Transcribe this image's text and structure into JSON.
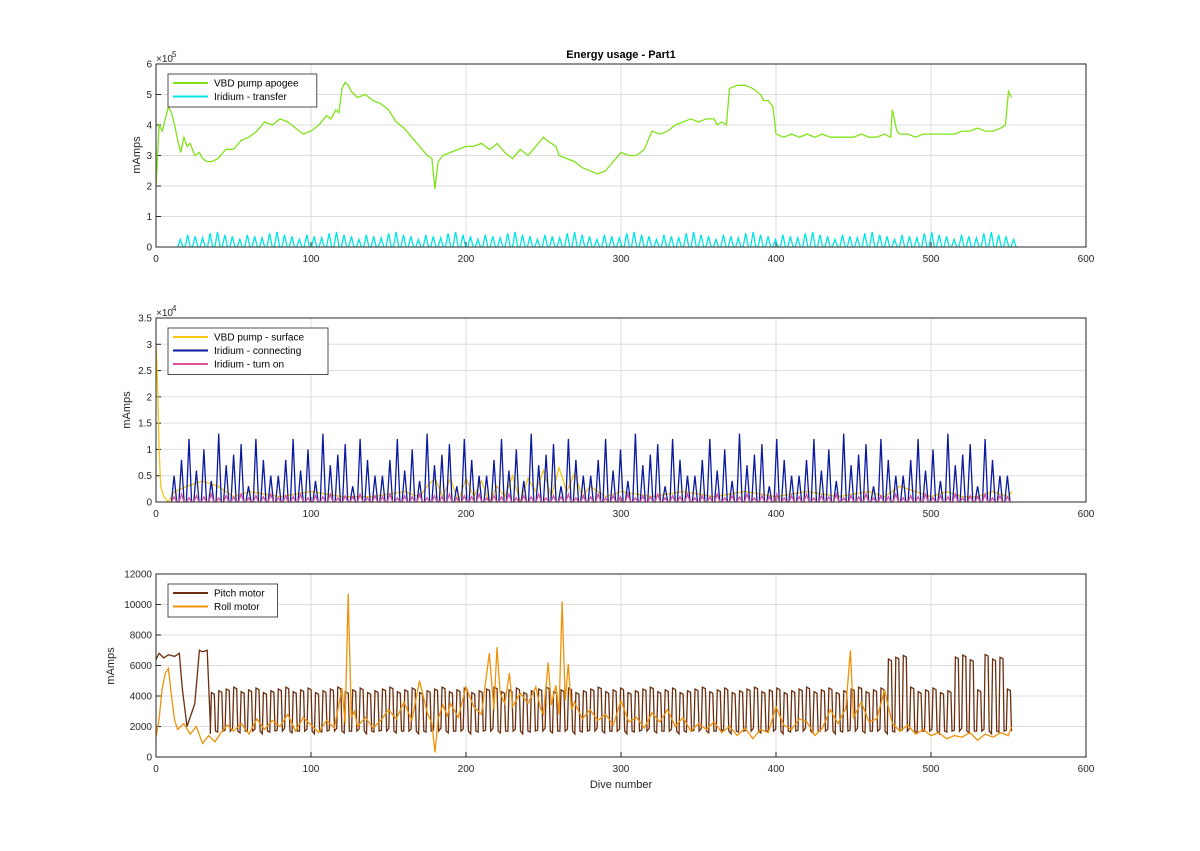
{
  "chart_data": [
    {
      "type": "line",
      "title": "Energy usage - Part1",
      "xlabel": "",
      "ylabel": "mAmps",
      "exponent_label": "×10",
      "exponent_power": "5",
      "xlim": [
        0,
        600
      ],
      "ylim": [
        0,
        6
      ],
      "xticks": [
        "0",
        "100",
        "200",
        "300",
        "400",
        "500",
        "600"
      ],
      "yticks": [
        "0",
        "1",
        "2",
        "3",
        "4",
        "5",
        "6"
      ],
      "grid": true,
      "legend": "top-left",
      "series": [
        {
          "name": "VBD pump apogee",
          "color": "#80e31a",
          "x": [
            0,
            2,
            4,
            6,
            8,
            10,
            12,
            14,
            16,
            18,
            20,
            22,
            25,
            28,
            30,
            33,
            36,
            40,
            45,
            50,
            55,
            60,
            65,
            70,
            75,
            80,
            85,
            90,
            95,
            100,
            105,
            110,
            113,
            116,
            118,
            120,
            122,
            124,
            126,
            128,
            130,
            135,
            140,
            145,
            150,
            155,
            160,
            165,
            170,
            175,
            178,
            180,
            182,
            185,
            190,
            195,
            200,
            205,
            210,
            215,
            218,
            220,
            225,
            230,
            235,
            240,
            245,
            250,
            252,
            255,
            258,
            260,
            265,
            270,
            275,
            280,
            285,
            290,
            295,
            300,
            305,
            310,
            315,
            320,
            325,
            330,
            335,
            340,
            345,
            350,
            355,
            360,
            362,
            365,
            368,
            370,
            375,
            380,
            385,
            390,
            392,
            395,
            398,
            400,
            405,
            410,
            415,
            420,
            425,
            430,
            435,
            440,
            445,
            450,
            455,
            460,
            465,
            470,
            474,
            475,
            478,
            480,
            485,
            490,
            495,
            500,
            505,
            510,
            515,
            520,
            525,
            530,
            535,
            540,
            545,
            548,
            550,
            552
          ],
          "y": [
            2.0,
            4.0,
            3.8,
            4.2,
            4.6,
            4.4,
            4.0,
            3.5,
            3.1,
            3.6,
            3.3,
            3.4,
            3.0,
            3.1,
            2.9,
            2.8,
            2.8,
            2.9,
            3.2,
            3.2,
            3.5,
            3.6,
            3.8,
            4.1,
            4.0,
            4.2,
            4.1,
            3.9,
            3.7,
            3.8,
            4.0,
            4.3,
            4.2,
            4.5,
            4.4,
            5.2,
            5.4,
            5.3,
            5.1,
            5.0,
            4.9,
            5.0,
            4.8,
            4.7,
            4.5,
            4.1,
            3.9,
            3.6,
            3.3,
            3.0,
            2.9,
            1.9,
            2.8,
            3.0,
            3.1,
            3.2,
            3.3,
            3.3,
            3.4,
            3.2,
            3.3,
            3.4,
            3.1,
            2.9,
            3.2,
            3.0,
            3.3,
            3.6,
            3.5,
            3.4,
            3.3,
            3.0,
            2.9,
            2.8,
            2.6,
            2.5,
            2.4,
            2.5,
            2.8,
            3.1,
            3.0,
            3.0,
            3.2,
            3.8,
            3.7,
            3.8,
            4.0,
            4.1,
            4.2,
            4.1,
            4.2,
            4.2,
            4.0,
            4.1,
            4.0,
            5.2,
            5.3,
            5.3,
            5.2,
            5.0,
            4.8,
            4.8,
            4.6,
            3.7,
            3.6,
            3.7,
            3.6,
            3.7,
            3.6,
            3.7,
            3.6,
            3.6,
            3.6,
            3.6,
            3.7,
            3.6,
            3.6,
            3.7,
            3.6,
            4.5,
            3.8,
            3.7,
            3.7,
            3.6,
            3.7,
            3.7,
            3.7,
            3.7,
            3.7,
            3.8,
            3.8,
            3.9,
            3.8,
            3.8,
            3.9,
            4.0,
            5.1,
            4.9
          ]
        },
        {
          "name": "Iridium - transfer",
          "color": "#00e5e5",
          "pattern": "spikes",
          "x_start": 14,
          "x_end": 552,
          "spacing": 4.8,
          "peaks": [
            0.25,
            0.4,
            0.35,
            0.3,
            0.45,
            0.5,
            0.4,
            0.35
          ]
        }
      ]
    },
    {
      "type": "line",
      "title": "",
      "xlabel": "",
      "ylabel": "mAmps",
      "exponent_label": "×10",
      "exponent_power": "4",
      "xlim": [
        0,
        600
      ],
      "ylim": [
        0,
        3.5
      ],
      "xticks": [
        "0",
        "100",
        "200",
        "300",
        "400",
        "500",
        "600"
      ],
      "yticks": [
        "0",
        "0.5",
        "1",
        "1.5",
        "2",
        "2.5",
        "3",
        "3.5"
      ],
      "grid": true,
      "legend": "top-left",
      "series": [
        {
          "name": "VBD pump - surface",
          "color": "#f5c518",
          "x": [
            0,
            1,
            2,
            3,
            5,
            8,
            12,
            20,
            30,
            40,
            50,
            60,
            80,
            100,
            120,
            140,
            160,
            170,
            175,
            180,
            185,
            190,
            195,
            200,
            205,
            210,
            215,
            220,
            225,
            230,
            235,
            240,
            245,
            250,
            255,
            260,
            265,
            270,
            275,
            280,
            290,
            300,
            320,
            340,
            360,
            380,
            400,
            420,
            440,
            460,
            470,
            480,
            490,
            500,
            510,
            520,
            530,
            540,
            550,
            552
          ],
          "y": [
            3.0,
            2.2,
            1.0,
            0.3,
            0.1,
            0.0,
            0.2,
            0.3,
            0.4,
            0.3,
            0.1,
            0.2,
            0.1,
            0.2,
            0.1,
            0.1,
            0.2,
            0.1,
            0.3,
            0.45,
            0.1,
            0.45,
            0.0,
            0.45,
            0.1,
            0.4,
            0.0,
            0.3,
            0.1,
            0.5,
            0.0,
            0.45,
            0.2,
            0.6,
            0.1,
            0.65,
            0.2,
            0.55,
            0.1,
            0.3,
            0.1,
            0.2,
            0.1,
            0.2,
            0.1,
            0.2,
            0.1,
            0.2,
            0.1,
            0.2,
            0.1,
            0.3,
            0.2,
            0.1,
            0.2,
            0.1,
            0.1,
            0.2,
            0.1,
            0.2
          ]
        },
        {
          "name": "Iridium - connecting",
          "color": "#0a1a9e",
          "pattern": "spikes",
          "x_start": 10,
          "x_end": 552,
          "spacing": 4.8,
          "peaks": [
            0.5,
            0.8,
            1.2,
            0.6,
            1.0,
            0.4,
            1.3,
            0.7,
            0.9,
            1.1,
            0.3,
            1.2,
            0.8,
            0.5
          ]
        },
        {
          "name": "Iridium - turn on",
          "color": "#e0509a",
          "pattern": "spikes",
          "x_start": 10,
          "x_end": 552,
          "spacing": 4.8,
          "peaks": [
            0.1,
            0.15,
            0.08,
            0.12
          ]
        }
      ]
    },
    {
      "type": "line",
      "title": "",
      "xlabel": "Dive number",
      "ylabel": "mAmps",
      "xlim": [
        0,
        600
      ],
      "ylim": [
        0,
        12000
      ],
      "xticks": [
        "0",
        "100",
        "200",
        "300",
        "400",
        "500",
        "600"
      ],
      "yticks": [
        "0",
        "2000",
        "4000",
        "6000",
        "8000",
        "10000",
        "12000"
      ],
      "grid": true,
      "legend": "top-left",
      "series": [
        {
          "name": "Pitch motor",
          "color": "#6b2e0e",
          "pattern": "square",
          "lead": {
            "x": [
              0,
              2,
              5,
              8,
              12,
              15,
              17,
              20,
              25,
              28,
              30,
              33,
              35
            ],
            "y": [
              6400,
              6800,
              6500,
              6700,
              6600,
              6800,
              4500,
              2000,
              3500,
              7000,
              6900,
              7000,
              2200
            ]
          },
          "x_start": 35,
          "x_end": 552,
          "spacing": 4.8,
          "low": 1700,
          "high": 4400,
          "bumps": [
            {
              "x": 520,
              "y": 6500
            },
            {
              "x": 540,
              "y": 6600
            },
            {
              "x": 475,
              "y": 6600
            }
          ]
        },
        {
          "name": "Roll motor",
          "color": "#f0920a",
          "x": [
            0,
            2,
            4,
            6,
            8,
            10,
            12,
            14,
            18,
            22,
            26,
            30,
            34,
            38,
            42,
            46,
            50,
            55,
            60,
            65,
            70,
            75,
            80,
            85,
            90,
            95,
            100,
            105,
            110,
            115,
            120,
            122,
            124,
            126,
            128,
            130,
            135,
            140,
            145,
            150,
            155,
            160,
            165,
            170,
            175,
            178,
            180,
            182,
            185,
            188,
            190,
            195,
            200,
            205,
            210,
            215,
            218,
            220,
            222,
            225,
            228,
            230,
            235,
            240,
            245,
            248,
            250,
            253,
            255,
            258,
            260,
            262,
            264,
            266,
            268,
            270,
            275,
            280,
            285,
            290,
            295,
            300,
            305,
            310,
            315,
            320,
            325,
            330,
            335,
            340,
            345,
            350,
            355,
            360,
            365,
            370,
            375,
            380,
            385,
            390,
            395,
            400,
            405,
            410,
            415,
            420,
            425,
            430,
            435,
            440,
            445,
            448,
            450,
            455,
            460,
            465,
            470,
            475,
            480,
            485,
            490,
            495,
            500,
            505,
            510,
            515,
            520,
            525,
            530,
            535,
            540,
            545,
            550,
            552
          ],
          "y": [
            1300,
            2500,
            4500,
            5500,
            5800,
            4000,
            2400,
            1800,
            2200,
            1500,
            2000,
            900,
            1400,
            1000,
            1600,
            2100,
            1700,
            2200,
            1500,
            2500,
            1800,
            2400,
            2000,
            2800,
            1700,
            2600,
            2100,
            1600,
            2400,
            1900,
            4500,
            2200,
            10700,
            2600,
            3000,
            2000,
            2600,
            1900,
            2400,
            3100,
            2500,
            3600,
            2400,
            5000,
            2900,
            2200,
            300,
            2500,
            3400,
            2700,
            3500,
            2600,
            4600,
            3300,
            2800,
            6800,
            3100,
            7200,
            4200,
            3500,
            5500,
            3300,
            4200,
            3500,
            4600,
            3200,
            2800,
            6200,
            3400,
            4700,
            2800,
            10200,
            3700,
            6100,
            3100,
            3600,
            2500,
            3100,
            2400,
            2800,
            2100,
            3700,
            2300,
            2600,
            1900,
            2900,
            2300,
            3100,
            2000,
            2600,
            1700,
            2200,
            1800,
            2300,
            1600,
            2000,
            1400,
            1900,
            1200,
            1800,
            1600,
            3300,
            2100,
            1800,
            2500,
            2300,
            1400,
            1900,
            3100,
            2200,
            3200,
            7000,
            2600,
            3600,
            2300,
            2500,
            4400,
            2200,
            1700,
            2100,
            1500,
            1800,
            1400,
            1600,
            1200,
            1400,
            1300,
            1600,
            1100,
            1500,
            1300,
            1600,
            1400,
            2000
          ]
        }
      ]
    }
  ]
}
